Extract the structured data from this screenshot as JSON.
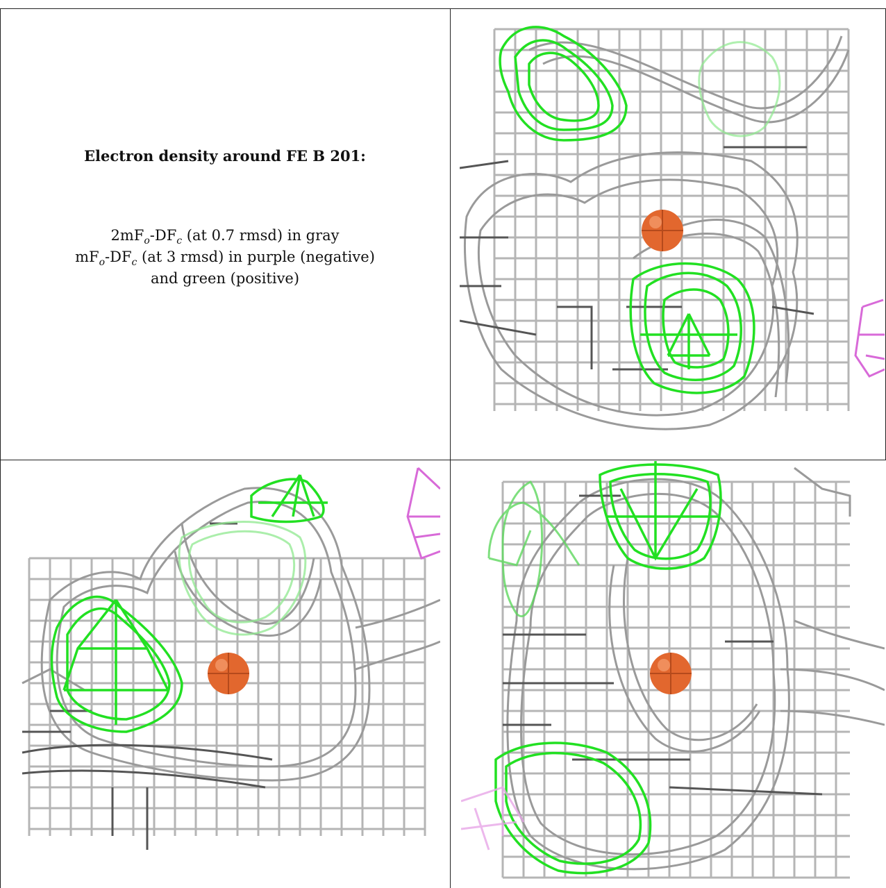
{
  "figure": {
    "caption_title": "Electron density around FE B 201:",
    "legend_lines": [
      {
        "prefix": "2mF",
        "sub1": "o",
        "mid": "-DF",
        "sub2": "c",
        "suffix": " (at 0.7 rmsd) in gray"
      },
      {
        "prefix": "mF",
        "sub1": "o",
        "mid": "-DF",
        "sub2": "c",
        "suffix": " (at 3 rmsd) in purple (negative)"
      },
      {
        "text": "and green (positive)"
      }
    ],
    "colors": {
      "density_2fofc": "#a8a8a8",
      "density_2fofc_dark": "#555555",
      "difference_positive": "#22e022",
      "difference_negative": "#d86ad8",
      "iron_atom": "#e2672e"
    },
    "panels": [
      {
        "view": "view-1",
        "atom": "FE B 201"
      },
      {
        "view": "view-2",
        "atom": "FE B 201"
      },
      {
        "view": "view-3",
        "atom": "FE B 201"
      }
    ]
  }
}
